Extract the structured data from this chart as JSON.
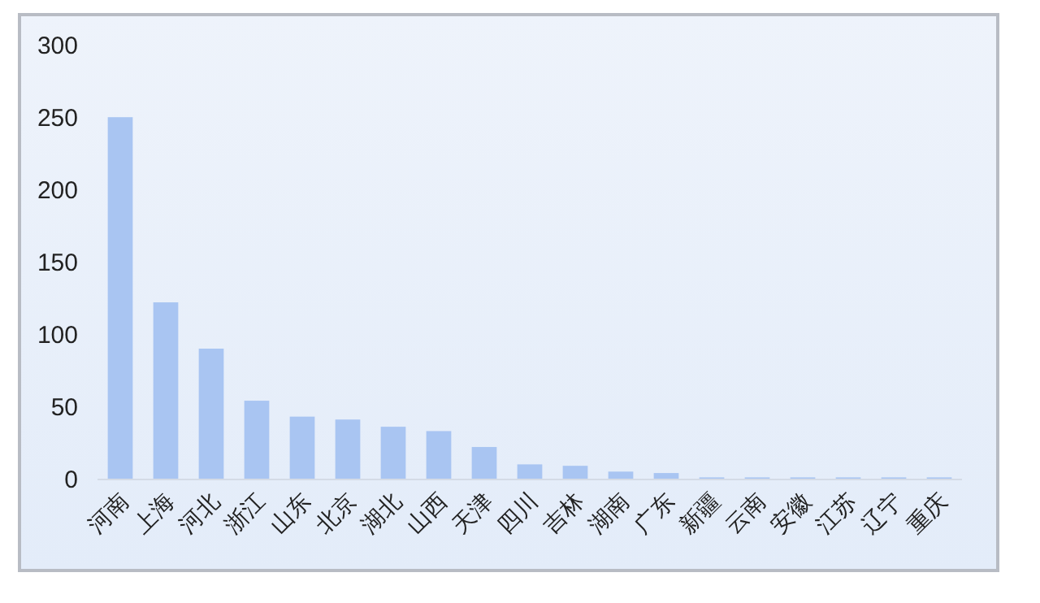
{
  "chart_data": {
    "type": "bar",
    "categories": [
      "河南",
      "上海",
      "河北",
      "浙江",
      "山东",
      "北京",
      "湖北",
      "山西",
      "天津",
      "四川",
      "吉林",
      "湖南",
      "广东",
      "新疆",
      "云南",
      "安徽",
      "江苏",
      "辽宁",
      "重庆"
    ],
    "values": [
      250,
      122,
      90,
      54,
      43,
      41,
      36,
      33,
      22,
      10,
      9,
      5,
      4,
      1,
      1,
      1,
      1,
      1,
      1
    ],
    "color": "#a9c5f2",
    "ylim": [
      0,
      300
    ],
    "yticks": [
      0,
      50,
      100,
      150,
      200,
      250,
      300
    ],
    "grid": false
  }
}
